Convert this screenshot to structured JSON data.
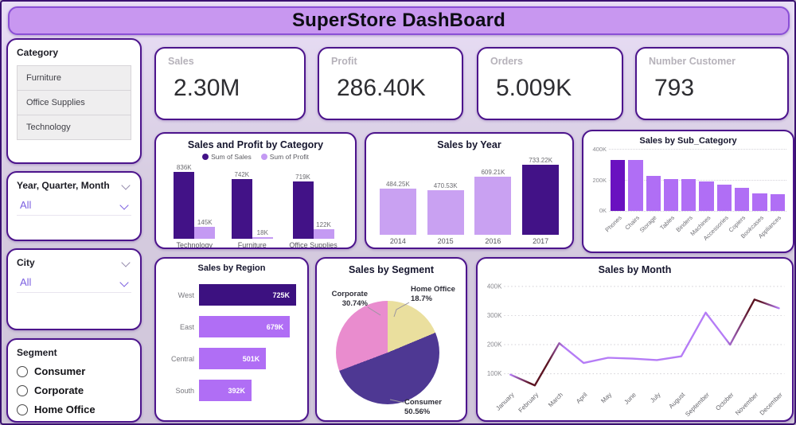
{
  "title": "SuperStore DashBoard",
  "sidebar": {
    "category": {
      "title": "Category",
      "items": [
        "Furniture",
        "Office Supplies",
        "Technology"
      ]
    },
    "date_filter": {
      "title": "Year, Quarter, Month",
      "value": "All"
    },
    "city_filter": {
      "title": "City",
      "value": "All"
    },
    "segment": {
      "title": "Segment",
      "options": [
        "Consumer",
        "Corporate",
        "Home Office"
      ]
    }
  },
  "kpis": [
    {
      "label": "Sales",
      "value": "2.30M"
    },
    {
      "label": "Profit",
      "value": "286.40K"
    },
    {
      "label": "Orders",
      "value": "5.009K"
    },
    {
      "label": "Number Customer",
      "value": "793"
    }
  ],
  "colors": {
    "dark_purple": "#421287",
    "violet": "#6a11c0",
    "medium_purple": "#b06ef5",
    "light_purple": "#c9a1f2",
    "pie_consumer": "#4e3893",
    "pie_corporate": "#e98cce",
    "pie_home_office": "#eadf9e",
    "line_light": "#b57cf6",
    "line_dark": "#5c1422"
  },
  "chart_data": [
    {
      "id": "cat",
      "type": "grouped-bar",
      "title": "Sales and Profit by Category",
      "categories": [
        "Technology",
        "Furniture",
        "Office Supplies"
      ],
      "series": [
        {
          "name": "Sum of Sales",
          "values": [
            836,
            742,
            719
          ],
          "labels": [
            "836K",
            "742K",
            "719K"
          ],
          "color": "#421287"
        },
        {
          "name": "Sum of Profit",
          "values": [
            145,
            18,
            122
          ],
          "labels": [
            "145K",
            "18K",
            "122K"
          ],
          "color": "#c49af3"
        }
      ],
      "ymax": 836,
      "legend_position": "top",
      "grid": false
    },
    {
      "id": "year",
      "type": "bar",
      "title": "Sales by Year",
      "categories": [
        "2014",
        "2015",
        "2016",
        "2017"
      ],
      "values": [
        484.25,
        470.53,
        609.21,
        733.22
      ],
      "labels": [
        "484.25K",
        "470.53K",
        "609.21K",
        "733.22K"
      ],
      "bar_colors": [
        "#c9a1f2",
        "#c9a1f2",
        "#c9a1f2",
        "#421287"
      ],
      "ymax": 733.22,
      "grid": false
    },
    {
      "id": "subcat",
      "type": "bar",
      "title": "Sales by Sub_Category",
      "categories": [
        "Phones",
        "Chairs",
        "Storage",
        "Tables",
        "Binders",
        "Machines",
        "Accessories",
        "Copiers",
        "Bookcases",
        "Appliances"
      ],
      "values": [
        330,
        328,
        224,
        207,
        203,
        189,
        167,
        150,
        115,
        108
      ],
      "bar_colors": [
        "#6a11c0",
        "#b06ef5",
        "#b06ef5",
        "#b06ef5",
        "#b06ef5",
        "#b06ef5",
        "#b06ef5",
        "#b06ef5",
        "#b06ef5",
        "#b06ef5"
      ],
      "yticks": [
        "0K",
        "200K",
        "400K"
      ],
      "ylim": [
        0,
        400
      ],
      "grid": true
    },
    {
      "id": "region",
      "type": "bar-horizontal",
      "title": "Sales by Region",
      "categories": [
        "West",
        "East",
        "Central",
        "South"
      ],
      "values": [
        725,
        679,
        501,
        392
      ],
      "labels": [
        "725K",
        "679K",
        "501K",
        "392K"
      ],
      "bar_colors": [
        "#3c1180",
        "#b06ef5",
        "#b06ef5",
        "#b06ef5"
      ],
      "xmax": 725
    },
    {
      "id": "segment",
      "type": "pie",
      "title": "Sales by Segment",
      "slices": [
        {
          "name": "Home Office",
          "pct": 18.7,
          "label": "18.7%",
          "color": "#eadf9e"
        },
        {
          "name": "Consumer",
          "pct": 50.56,
          "label": "50.56%",
          "color": "#4e3893"
        },
        {
          "name": "Corporate",
          "pct": 30.74,
          "label": "30.74%",
          "color": "#e98cce"
        }
      ],
      "start_angle_deg": 0,
      "clockwise": true
    },
    {
      "id": "month",
      "type": "line",
      "title": "Sales by Month",
      "x": [
        "January",
        "February",
        "March",
        "April",
        "May",
        "June",
        "July",
        "August",
        "September",
        "October",
        "November",
        "December"
      ],
      "values": [
        97,
        60,
        205,
        137,
        155,
        152,
        147,
        160,
        310,
        200,
        355,
        325
      ],
      "unit": "K",
      "yticks": [
        "100K",
        "200K",
        "300K",
        "400K"
      ],
      "ylim": [
        40,
        410
      ],
      "grid": true,
      "stroke_stops": [
        {
          "o": "0%",
          "c": "#b57cf6"
        },
        {
          "o": "7%",
          "c": "#5c1422"
        },
        {
          "o": "14%",
          "c": "#5c1422"
        },
        {
          "o": "20%",
          "c": "#b57cf6"
        },
        {
          "o": "80%",
          "c": "#b57cf6"
        },
        {
          "o": "89%",
          "c": "#5c1422"
        },
        {
          "o": "93%",
          "c": "#5c1422"
        },
        {
          "o": "100%",
          "c": "#b57cf6"
        }
      ]
    }
  ]
}
